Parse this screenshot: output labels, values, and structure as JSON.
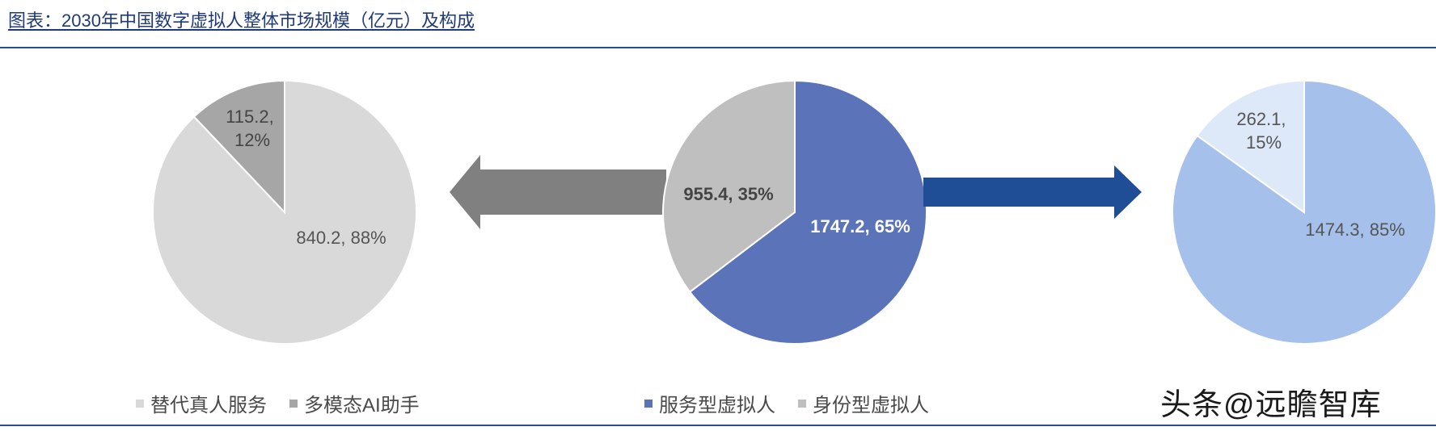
{
  "title": "图表：2030年中国数字虚拟人整体市场规模（亿元）及构成",
  "watermark": "头条@远瞻智库",
  "colors": {
    "replace_human": "#d9d9d9",
    "ai_assistant": "#a6a6a6",
    "service": "#5b73b8",
    "identity": "#bfbfbf",
    "right_large": "#a5c0ea",
    "right_small": "#dde8f8",
    "arrow_left": "#808080",
    "arrow_right": "#1f4e96"
  },
  "chart_data": [
    {
      "type": "pie",
      "slices": [
        {
          "name": "替代真人服务",
          "value": 840.2,
          "percent": 88,
          "label": "840.2, 88%"
        },
        {
          "name": "多模态AI助手",
          "value": 115.2,
          "percent": 12,
          "label_lines": [
            "115.2,",
            "12%"
          ]
        }
      ]
    },
    {
      "type": "pie",
      "slices": [
        {
          "name": "服务型虚拟人",
          "value": 1747.2,
          "percent": 65,
          "label": "1747.2, 65%"
        },
        {
          "name": "身份型虚拟人",
          "value": 955.4,
          "percent": 35,
          "label": "955.4, 35%"
        }
      ]
    },
    {
      "type": "pie",
      "slices": [
        {
          "value": 1474.3,
          "percent": 85,
          "label": "1474.3, 85%"
        },
        {
          "value": 262.1,
          "percent": 15,
          "label_lines": [
            "262.1,",
            "15%"
          ]
        }
      ]
    }
  ],
  "legends": {
    "left": [
      "替代真人服务",
      "多模态AI助手"
    ],
    "center": [
      "服务型虚拟人",
      "身份型虚拟人"
    ]
  }
}
